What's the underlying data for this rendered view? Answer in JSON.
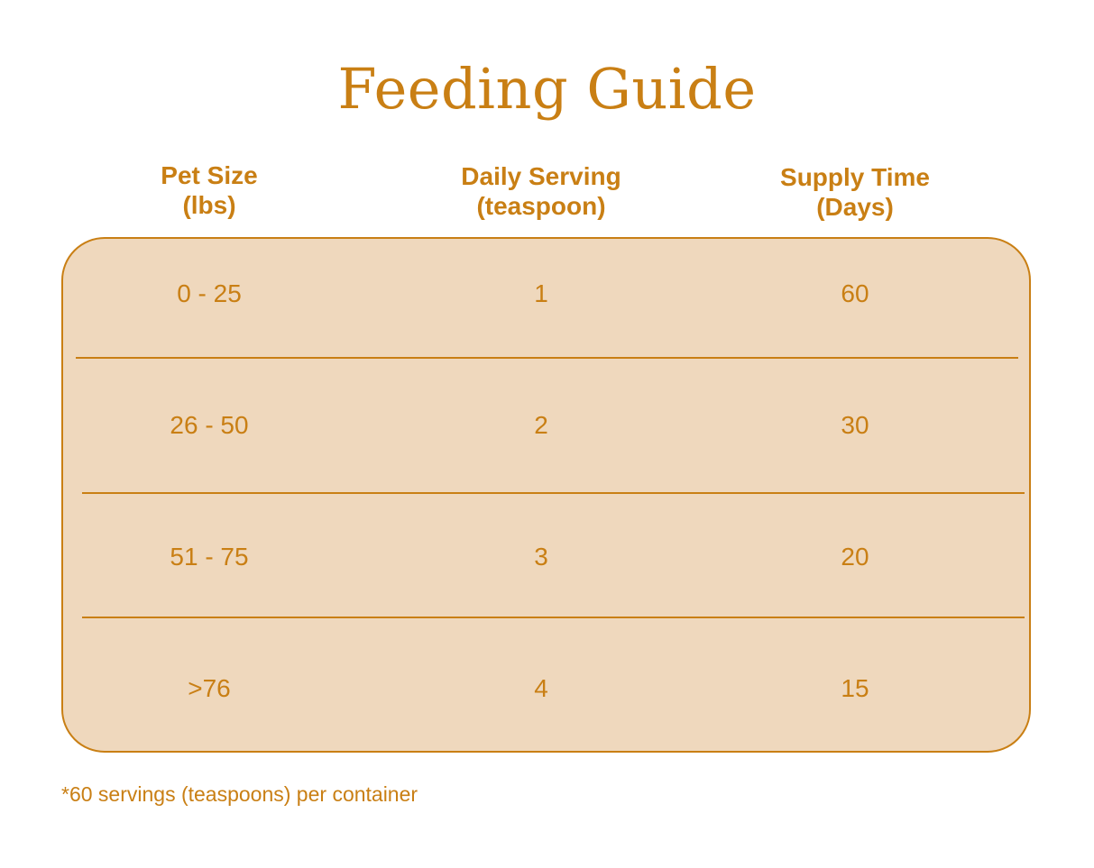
{
  "title": "Feeding Guide",
  "headers": [
    {
      "line1": "Pet Size",
      "line2": "(lbs)"
    },
    {
      "line1": "Daily Serving",
      "line2": "(teaspoon)"
    },
    {
      "line1": "Supply Time",
      "line2": "(Days)"
    }
  ],
  "rows": [
    [
      "0 - 25",
      "1",
      "60"
    ],
    [
      "26 - 50",
      "2",
      "30"
    ],
    [
      "51 - 75",
      "3",
      "20"
    ],
    [
      ">76",
      "4",
      "15"
    ]
  ],
  "footnote": "*60 servings (teaspoons) per container",
  "colors": {
    "accent": "#C97F14",
    "table_fill": "#EFD8BD",
    "background": "#FFFFFF"
  }
}
